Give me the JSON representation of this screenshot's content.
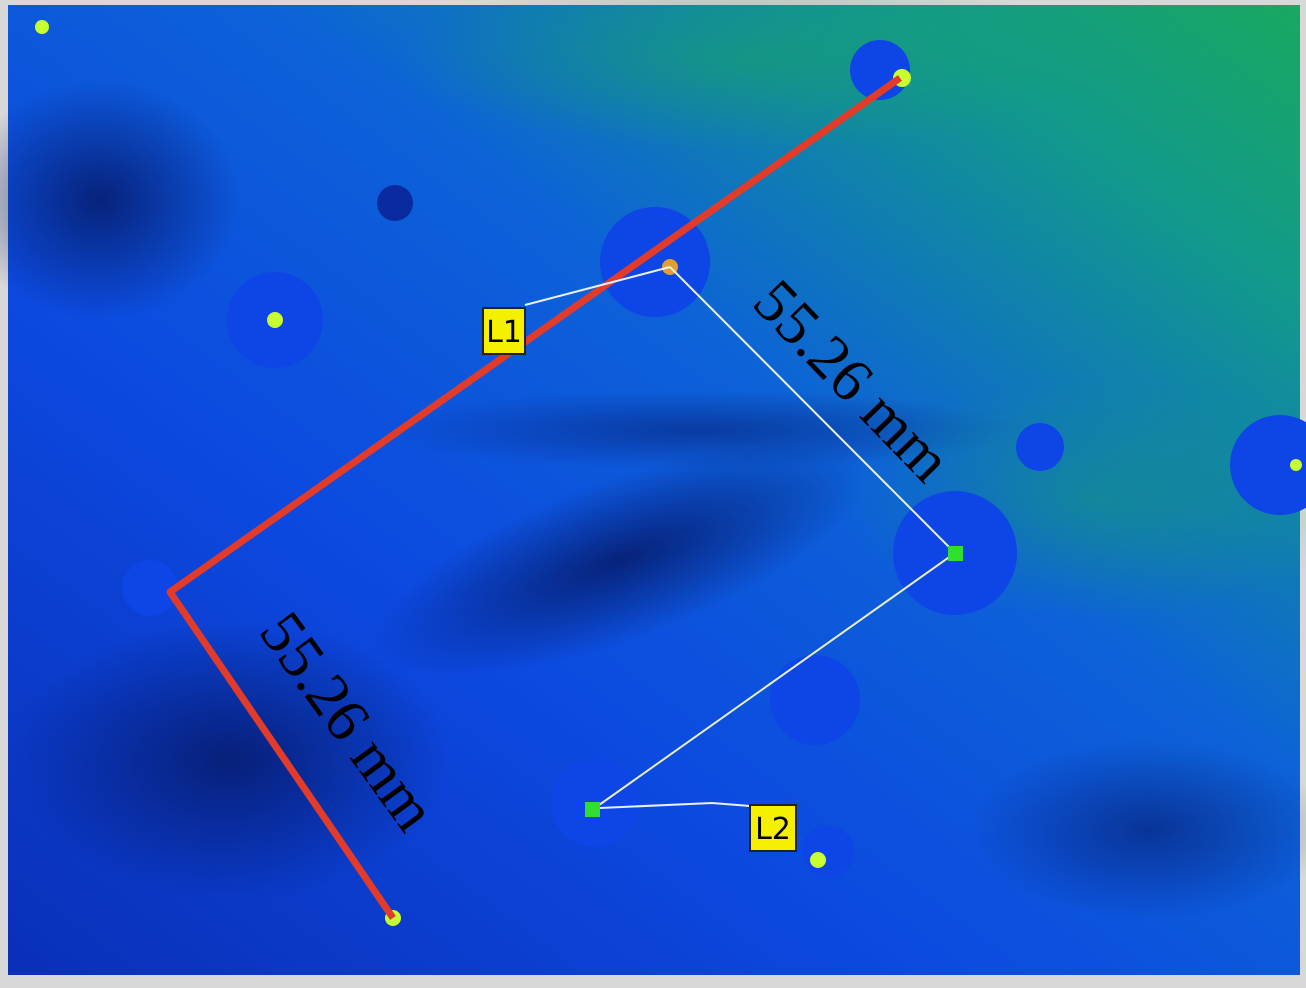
{
  "measurements": [
    {
      "label": "55.26 mm"
    },
    {
      "label": "55.26 mm"
    }
  ],
  "markers": [
    {
      "label": "L1"
    },
    {
      "label": "L2"
    }
  ]
}
